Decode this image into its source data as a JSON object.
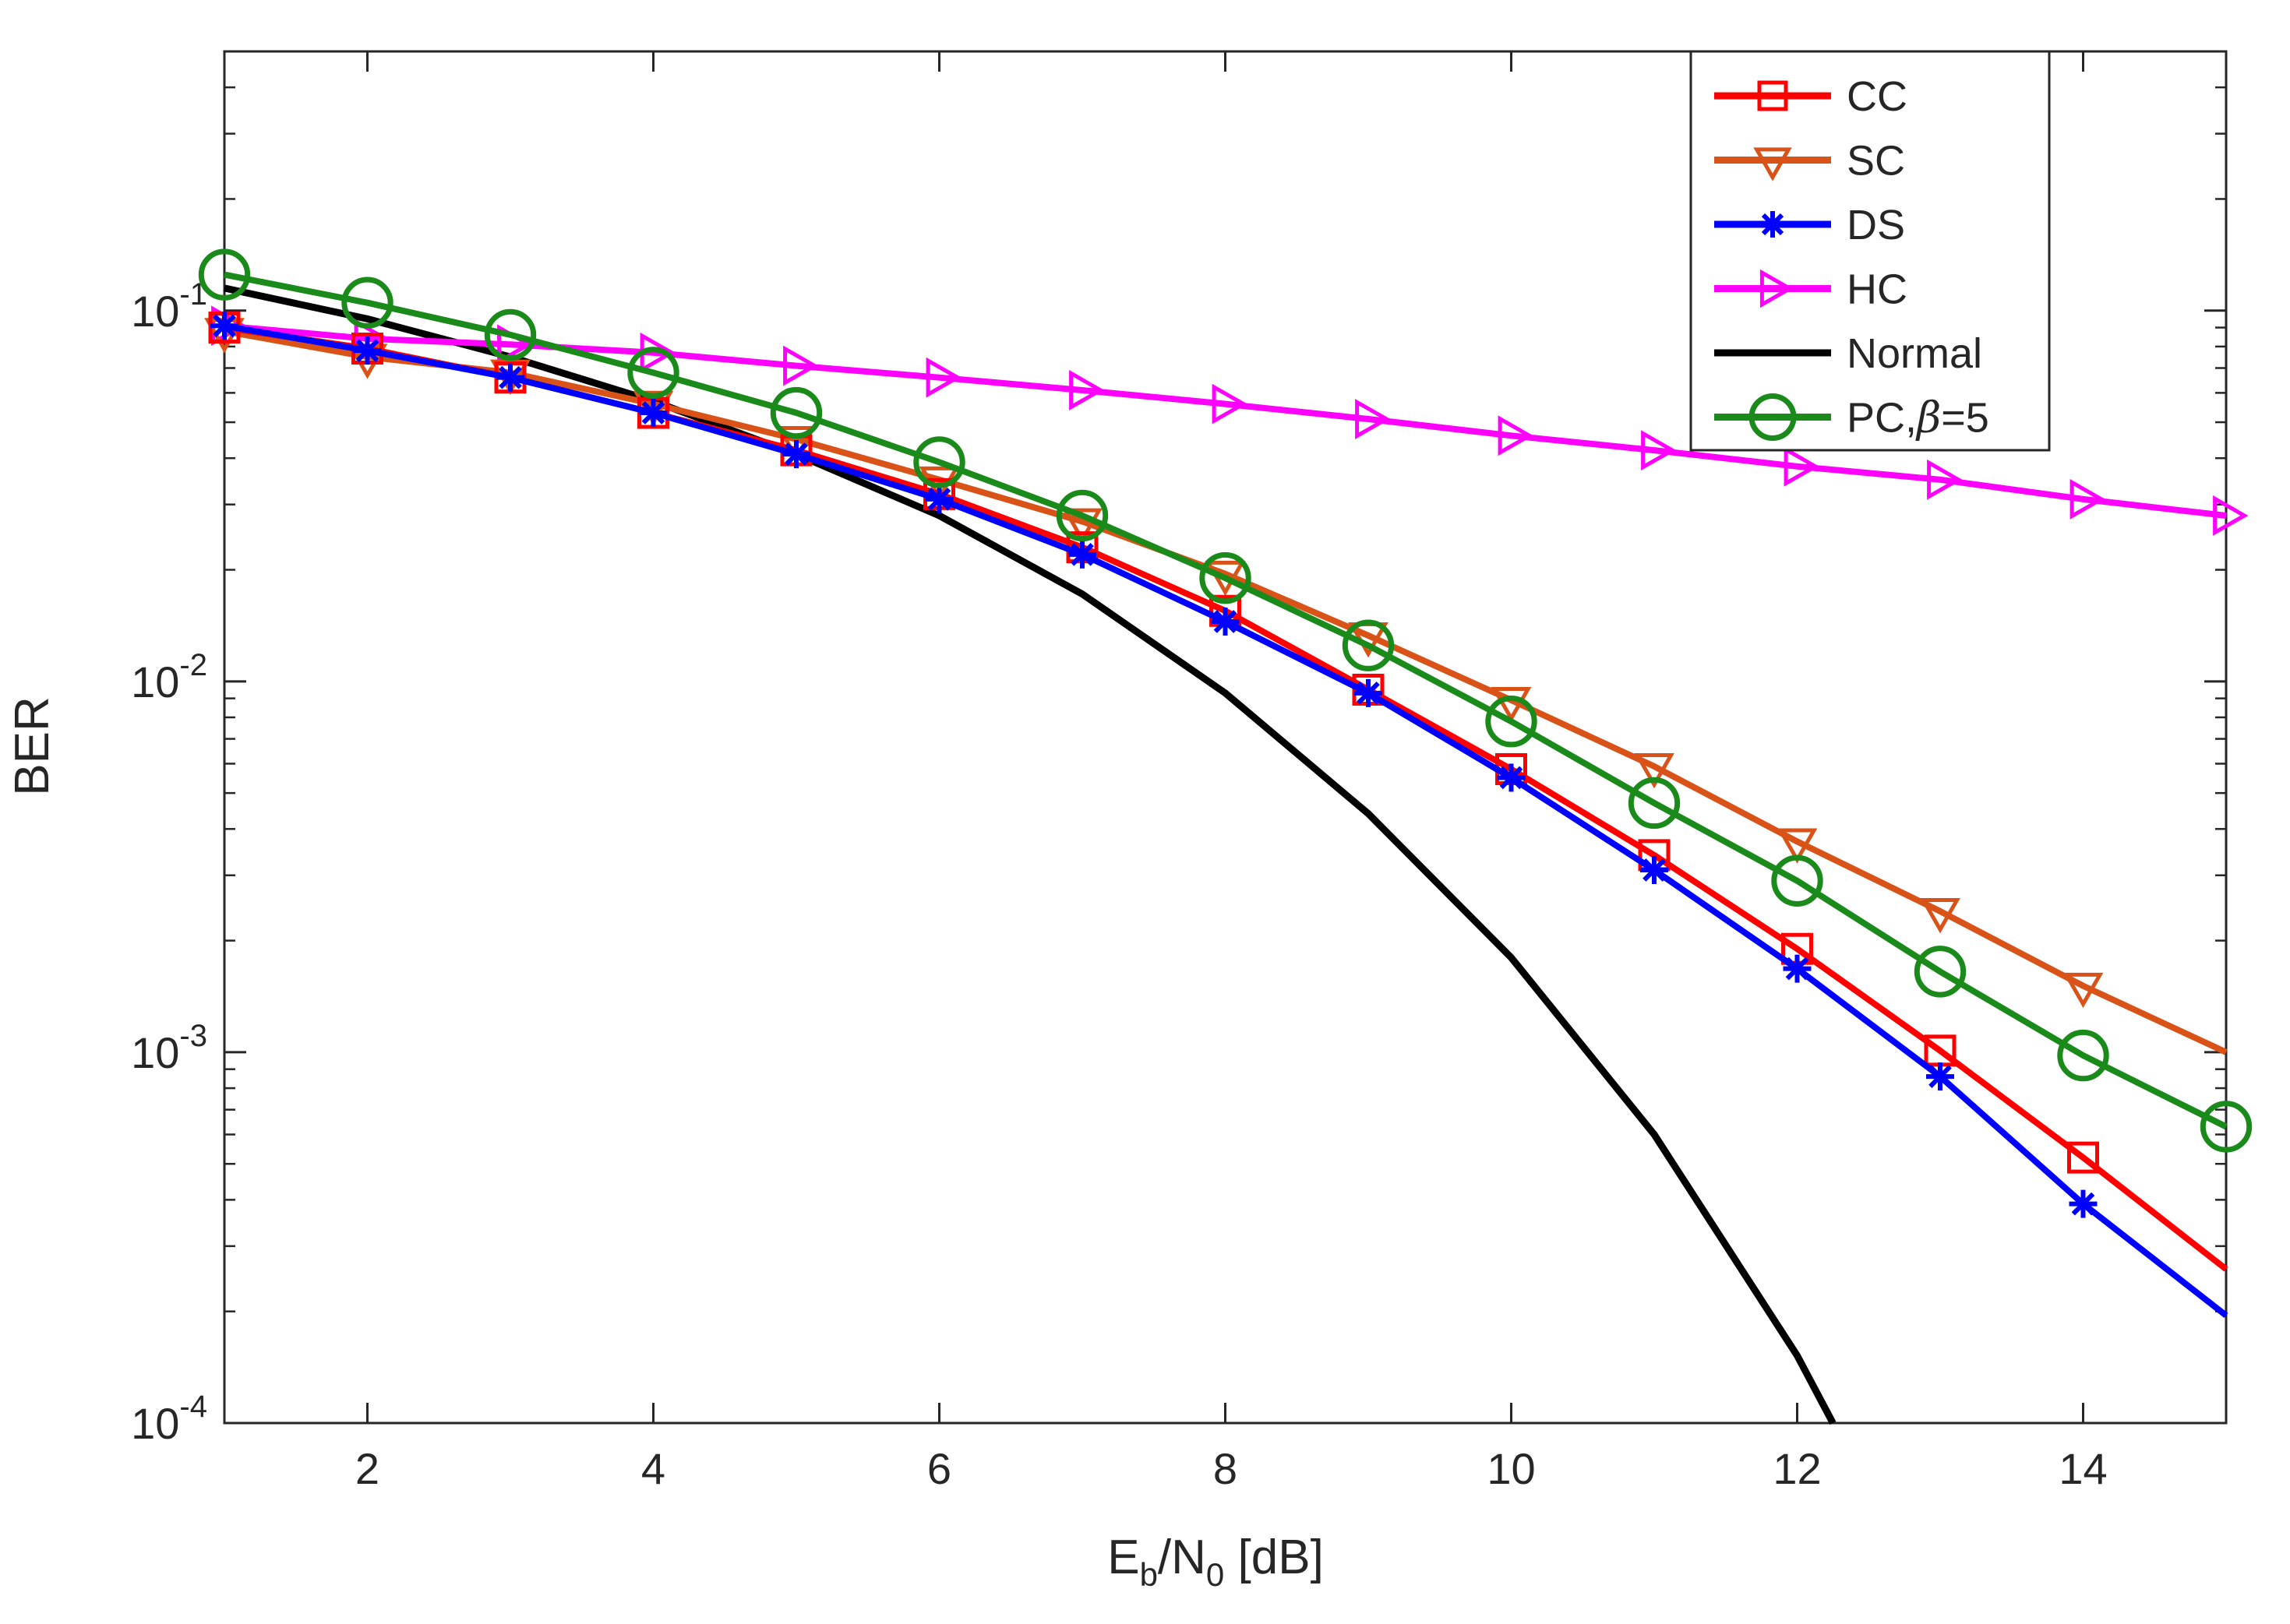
{
  "chart_data": {
    "type": "line",
    "title": "",
    "xlabel": {
      "base": "E",
      "sub1": "b",
      "mid": "/N",
      "sub2": "0",
      "tail": " [dB]"
    },
    "ylabel": "BER",
    "xlim": [
      1,
      15
    ],
    "ylim": [
      0.0001,
      0.5
    ],
    "yscale": "log",
    "grid": false,
    "legend_position": "top-right",
    "x_ticks": [
      2,
      4,
      6,
      8,
      10,
      12,
      14
    ],
    "x_tick_labels": [
      "2",
      "4",
      "6",
      "8",
      "10",
      "12",
      "14"
    ],
    "y_ticks": [
      {
        "value": 0.1,
        "base": "10",
        "exp": "-1"
      },
      {
        "value": 0.01,
        "base": "10",
        "exp": "-2"
      },
      {
        "value": 0.001,
        "base": "10",
        "exp": "-3"
      },
      {
        "value": 0.0001,
        "base": "10",
        "exp": "-4"
      }
    ],
    "x": [
      1,
      2,
      3,
      4,
      5,
      6,
      7,
      8,
      9,
      10,
      11,
      12,
      13,
      14,
      15
    ],
    "series": [
      {
        "name": "CC",
        "color": "#ff0000",
        "marker": "square",
        "values": [
          0.09,
          0.079,
          0.066,
          0.053,
          0.042,
          0.032,
          0.023,
          0.0155,
          0.0095,
          0.0058,
          0.0034,
          0.0019,
          0.00101,
          0.00052,
          0.00026
        ]
      },
      {
        "name": "SC",
        "color": "#d95319",
        "marker": "triangle-down",
        "values": [
          0.088,
          0.075,
          0.068,
          0.056,
          0.045,
          0.035,
          0.027,
          0.0195,
          0.0133,
          0.0089,
          0.0059,
          0.0037,
          0.0024,
          0.00151,
          0.001
        ]
      },
      {
        "name": "DS",
        "color": "#0000ff",
        "marker": "asterisk",
        "values": [
          0.091,
          0.078,
          0.066,
          0.053,
          0.041,
          0.031,
          0.022,
          0.0145,
          0.0093,
          0.0055,
          0.0031,
          0.00168,
          0.00086,
          0.00039,
          0.000195
        ]
      },
      {
        "name": "HC",
        "color": "#ff00ff",
        "marker": "triangle-right",
        "values": [
          0.091,
          0.084,
          0.081,
          0.077,
          0.071,
          0.066,
          0.061,
          0.056,
          0.051,
          0.046,
          0.042,
          0.038,
          0.035,
          0.031,
          0.028
        ]
      },
      {
        "name": "Normal",
        "color": "#000000",
        "marker": "none",
        "x": [
          1,
          2,
          3,
          4,
          5,
          6,
          7,
          8,
          9,
          10,
          11,
          12,
          12.25
        ],
        "values": [
          0.115,
          0.095,
          0.075,
          0.057,
          0.041,
          0.028,
          0.0172,
          0.0093,
          0.0044,
          0.0018,
          0.0006,
          0.000152,
          0.0001
        ]
      },
      {
        "name": "PC,",
        "name_symbol": "β",
        "name_tail": "=5",
        "color": "#1a8a1a",
        "marker": "circle",
        "values": [
          0.125,
          0.105,
          0.086,
          0.068,
          0.053,
          0.039,
          0.028,
          0.019,
          0.0125,
          0.0078,
          0.0047,
          0.0029,
          0.00165,
          0.00098,
          0.00063
        ]
      }
    ]
  }
}
